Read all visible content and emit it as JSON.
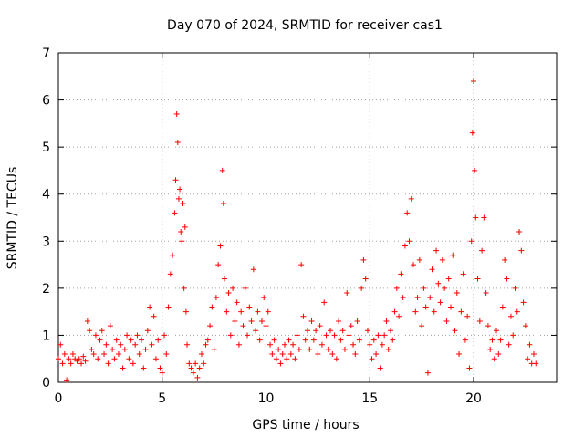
{
  "chart_data": {
    "type": "scatter",
    "title": "Day 070 of 2024, SRMTID for receiver cas1",
    "xlabel": "GPS time / hours",
    "ylabel": "SRMTID / TECUs",
    "xlim": [
      0,
      24
    ],
    "ylim": [
      0,
      7
    ],
    "xticks": [
      0,
      5,
      10,
      15,
      20
    ],
    "yticks": [
      0,
      1,
      2,
      3,
      4,
      5,
      6,
      7
    ],
    "grid": true,
    "marker": "plus",
    "color": "#ff0000",
    "series": [
      {
        "name": "cas1",
        "points": [
          [
            0.0,
            0.5
          ],
          [
            0.1,
            0.8
          ],
          [
            0.2,
            0.4
          ],
          [
            0.3,
            0.6
          ],
          [
            0.4,
            0.05
          ],
          [
            0.5,
            0.5
          ],
          [
            0.6,
            0.4
          ],
          [
            0.7,
            0.6
          ],
          [
            0.8,
            0.5
          ],
          [
            0.9,
            0.45
          ],
          [
            1.0,
            0.5
          ],
          [
            1.1,
            0.4
          ],
          [
            1.2,
            0.55
          ],
          [
            1.3,
            0.45
          ],
          [
            1.4,
            1.3
          ],
          [
            1.5,
            1.1
          ],
          [
            1.6,
            0.7
          ],
          [
            1.7,
            0.6
          ],
          [
            1.8,
            1.0
          ],
          [
            1.9,
            0.5
          ],
          [
            2.0,
            0.9
          ],
          [
            2.1,
            1.1
          ],
          [
            2.2,
            0.6
          ],
          [
            2.3,
            0.8
          ],
          [
            2.4,
            0.4
          ],
          [
            2.5,
            1.2
          ],
          [
            2.6,
            0.7
          ],
          [
            2.7,
            0.5
          ],
          [
            2.8,
            0.9
          ],
          [
            2.9,
            0.6
          ],
          [
            3.0,
            0.8
          ],
          [
            3.1,
            0.3
          ],
          [
            3.2,
            0.7
          ],
          [
            3.3,
            1.0
          ],
          [
            3.4,
            0.5
          ],
          [
            3.5,
            0.9
          ],
          [
            3.6,
            0.4
          ],
          [
            3.7,
            0.8
          ],
          [
            3.8,
            1.0
          ],
          [
            3.9,
            0.6
          ],
          [
            4.0,
            0.9
          ],
          [
            4.1,
            0.3
          ],
          [
            4.2,
            0.7
          ],
          [
            4.3,
            1.1
          ],
          [
            4.4,
            1.6
          ],
          [
            4.5,
            0.8
          ],
          [
            4.6,
            1.4
          ],
          [
            4.7,
            0.5
          ],
          [
            4.8,
            0.9
          ],
          [
            4.9,
            0.3
          ],
          [
            5.0,
            0.2
          ],
          [
            5.1,
            1.0
          ],
          [
            5.2,
            0.6
          ],
          [
            5.3,
            1.6
          ],
          [
            5.4,
            2.3
          ],
          [
            5.5,
            2.7
          ],
          [
            5.6,
            3.6
          ],
          [
            5.65,
            4.3
          ],
          [
            5.7,
            5.7
          ],
          [
            5.75,
            5.1
          ],
          [
            5.8,
            3.9
          ],
          [
            5.85,
            4.1
          ],
          [
            5.9,
            3.2
          ],
          [
            5.95,
            3.0
          ],
          [
            6.0,
            3.8
          ],
          [
            6.05,
            2.0
          ],
          [
            6.1,
            3.3
          ],
          [
            6.15,
            1.5
          ],
          [
            6.2,
            0.8
          ],
          [
            6.3,
            0.4
          ],
          [
            6.4,
            0.3
          ],
          [
            6.5,
            0.2
          ],
          [
            6.6,
            0.4
          ],
          [
            6.7,
            0.1
          ],
          [
            6.8,
            0.3
          ],
          [
            6.9,
            0.6
          ],
          [
            7.0,
            0.4
          ],
          [
            7.1,
            0.8
          ],
          [
            7.2,
            0.9
          ],
          [
            7.3,
            1.2
          ],
          [
            7.4,
            1.6
          ],
          [
            7.5,
            0.7
          ],
          [
            7.6,
            1.8
          ],
          [
            7.7,
            2.5
          ],
          [
            7.8,
            2.9
          ],
          [
            7.9,
            4.5
          ],
          [
            7.95,
            3.8
          ],
          [
            8.0,
            2.2
          ],
          [
            8.1,
            1.5
          ],
          [
            8.2,
            1.9
          ],
          [
            8.3,
            1.0
          ],
          [
            8.4,
            2.0
          ],
          [
            8.5,
            1.3
          ],
          [
            8.6,
            1.7
          ],
          [
            8.7,
            0.8
          ],
          [
            8.8,
            1.5
          ],
          [
            8.9,
            1.2
          ],
          [
            9.0,
            2.0
          ],
          [
            9.1,
            1.0
          ],
          [
            9.2,
            1.6
          ],
          [
            9.3,
            1.3
          ],
          [
            9.4,
            2.4
          ],
          [
            9.5,
            1.1
          ],
          [
            9.6,
            1.5
          ],
          [
            9.7,
            0.9
          ],
          [
            9.8,
            1.3
          ],
          [
            9.9,
            1.8
          ],
          [
            10.0,
            1.2
          ],
          [
            10.1,
            1.5
          ],
          [
            10.2,
            0.8
          ],
          [
            10.3,
            0.6
          ],
          [
            10.4,
            0.9
          ],
          [
            10.5,
            0.5
          ],
          [
            10.6,
            0.7
          ],
          [
            10.7,
            0.4
          ],
          [
            10.8,
            0.6
          ],
          [
            10.9,
            0.8
          ],
          [
            11.0,
            0.5
          ],
          [
            11.1,
            0.9
          ],
          [
            11.2,
            0.6
          ],
          [
            11.3,
            0.8
          ],
          [
            11.4,
            0.5
          ],
          [
            11.5,
            1.0
          ],
          [
            11.6,
            0.7
          ],
          [
            11.7,
            2.5
          ],
          [
            11.8,
            1.4
          ],
          [
            11.9,
            0.9
          ],
          [
            12.0,
            1.1
          ],
          [
            12.1,
            0.7
          ],
          [
            12.2,
            1.3
          ],
          [
            12.3,
            0.9
          ],
          [
            12.4,
            1.1
          ],
          [
            12.5,
            0.6
          ],
          [
            12.6,
            1.2
          ],
          [
            12.7,
            0.8
          ],
          [
            12.8,
            1.7
          ],
          [
            12.9,
            1.0
          ],
          [
            13.0,
            0.7
          ],
          [
            13.1,
            1.1
          ],
          [
            13.2,
            0.6
          ],
          [
            13.3,
            1.0
          ],
          [
            13.4,
            0.5
          ],
          [
            13.5,
            1.3
          ],
          [
            13.6,
            0.9
          ],
          [
            13.7,
            1.1
          ],
          [
            13.8,
            0.7
          ],
          [
            13.9,
            1.9
          ],
          [
            14.0,
            1.0
          ],
          [
            14.1,
            1.2
          ],
          [
            14.2,
            0.8
          ],
          [
            14.3,
            0.6
          ],
          [
            14.4,
            1.3
          ],
          [
            14.5,
            0.9
          ],
          [
            14.6,
            2.0
          ],
          [
            14.7,
            2.6
          ],
          [
            14.8,
            2.2
          ],
          [
            14.9,
            1.1
          ],
          [
            15.0,
            0.8
          ],
          [
            15.1,
            0.5
          ],
          [
            15.2,
            0.9
          ],
          [
            15.3,
            0.6
          ],
          [
            15.4,
            1.0
          ],
          [
            15.5,
            0.3
          ],
          [
            15.6,
            0.8
          ],
          [
            15.7,
            1.0
          ],
          [
            15.8,
            1.3
          ],
          [
            15.9,
            0.7
          ],
          [
            16.0,
            1.1
          ],
          [
            16.1,
            0.9
          ],
          [
            16.2,
            1.5
          ],
          [
            16.3,
            2.0
          ],
          [
            16.4,
            1.4
          ],
          [
            16.5,
            2.3
          ],
          [
            16.6,
            1.8
          ],
          [
            16.7,
            2.9
          ],
          [
            16.8,
            3.6
          ],
          [
            16.9,
            3.0
          ],
          [
            17.0,
            3.9
          ],
          [
            17.1,
            2.5
          ],
          [
            17.2,
            1.5
          ],
          [
            17.3,
            1.8
          ],
          [
            17.4,
            2.6
          ],
          [
            17.5,
            1.2
          ],
          [
            17.6,
            2.0
          ],
          [
            17.7,
            1.6
          ],
          [
            17.8,
            0.2
          ],
          [
            17.9,
            1.8
          ],
          [
            18.0,
            2.4
          ],
          [
            18.1,
            1.5
          ],
          [
            18.2,
            2.8
          ],
          [
            18.3,
            2.1
          ],
          [
            18.4,
            1.7
          ],
          [
            18.5,
            2.6
          ],
          [
            18.6,
            2.0
          ],
          [
            18.7,
            1.3
          ],
          [
            18.8,
            2.2
          ],
          [
            18.9,
            1.6
          ],
          [
            19.0,
            2.7
          ],
          [
            19.1,
            1.1
          ],
          [
            19.2,
            1.9
          ],
          [
            19.3,
            0.6
          ],
          [
            19.4,
            1.5
          ],
          [
            19.5,
            2.3
          ],
          [
            19.6,
            0.9
          ],
          [
            19.7,
            1.4
          ],
          [
            19.8,
            0.3
          ],
          [
            19.9,
            3.0
          ],
          [
            19.95,
            5.3
          ],
          [
            20.0,
            6.4
          ],
          [
            20.05,
            4.5
          ],
          [
            20.1,
            3.5
          ],
          [
            20.2,
            2.2
          ],
          [
            20.3,
            1.3
          ],
          [
            20.4,
            2.8
          ],
          [
            20.5,
            3.5
          ],
          [
            20.6,
            1.9
          ],
          [
            20.7,
            1.2
          ],
          [
            20.8,
            0.7
          ],
          [
            20.9,
            0.9
          ],
          [
            21.0,
            0.5
          ],
          [
            21.1,
            1.1
          ],
          [
            21.2,
            0.6
          ],
          [
            21.3,
            0.9
          ],
          [
            21.4,
            1.6
          ],
          [
            21.5,
            2.6
          ],
          [
            21.6,
            2.2
          ],
          [
            21.7,
            0.8
          ],
          [
            21.8,
            1.4
          ],
          [
            21.9,
            1.0
          ],
          [
            22.0,
            2.0
          ],
          [
            22.1,
            1.5
          ],
          [
            22.2,
            3.2
          ],
          [
            22.3,
            2.8
          ],
          [
            22.4,
            1.7
          ],
          [
            22.5,
            1.2
          ],
          [
            22.6,
            0.5
          ],
          [
            22.7,
            0.8
          ],
          [
            22.8,
            0.4
          ],
          [
            22.9,
            0.6
          ],
          [
            23.0,
            0.4
          ]
        ]
      }
    ]
  }
}
